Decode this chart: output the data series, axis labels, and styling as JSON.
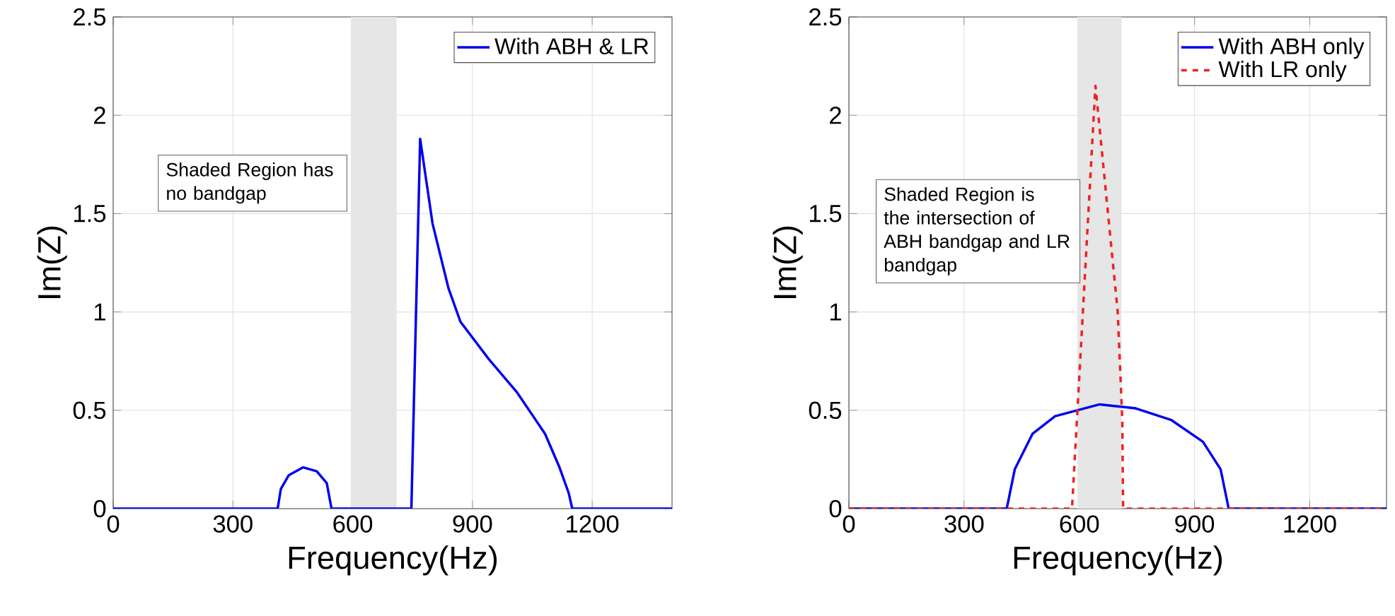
{
  "chart_data": [
    {
      "type": "line",
      "xlabel": "Frequency(Hz)",
      "ylabel": "Im(Z)",
      "xlim": [
        0,
        1400
      ],
      "ylim": [
        0,
        2.5
      ],
      "xticks": [
        0,
        300,
        600,
        900,
        1200
      ],
      "yticks": [
        0,
        0.5,
        1,
        1.5,
        2,
        2.5
      ],
      "grid": true,
      "legend": "top right",
      "bands": [
        {
          "axis": "x",
          "from": 595,
          "to": 710,
          "color": "#e6e6e6"
        }
      ],
      "annotations": [
        "Shaded Region has no bandgap"
      ],
      "series": [
        {
          "name": "With ABH & LR",
          "color": "#0000ee",
          "line_style": "solid",
          "x": [
            0,
            412,
            420,
            440,
            476,
            510,
            535,
            547,
            747,
            769,
            800,
            840,
            870,
            941,
            1012,
            1082,
            1118,
            1141,
            1150,
            1400
          ],
          "values": [
            0,
            0,
            0.1,
            0.17,
            0.21,
            0.19,
            0.13,
            0,
            0,
            1.88,
            1.45,
            1.12,
            0.95,
            0.76,
            0.59,
            0.38,
            0.21,
            0.08,
            0,
            0
          ]
        }
      ]
    },
    {
      "type": "line",
      "xlabel": "Frequency(Hz)",
      "ylabel": "Im(Z)",
      "xlim": [
        0,
        1400
      ],
      "ylim": [
        0,
        2.5
      ],
      "xticks": [
        0,
        300,
        600,
        900,
        1200
      ],
      "yticks": [
        0,
        0.5,
        1,
        1.5,
        2,
        2.5
      ],
      "grid": true,
      "legend": "top right",
      "bands": [
        {
          "axis": "x",
          "from": 595,
          "to": 710,
          "color": "#e6e6e6"
        }
      ],
      "annotations": [
        "Shaded Region is the intersection of ABH bandgap and LR bandgap"
      ],
      "series": [
        {
          "name": "With ABH only",
          "color": "#0000ee",
          "line_style": "solid",
          "x": [
            0,
            411,
            432,
            478,
            537,
            653,
            747,
            840,
            922,
            968,
            989,
            1400
          ],
          "values": [
            0,
            0,
            0.2,
            0.38,
            0.47,
            0.53,
            0.51,
            0.45,
            0.34,
            0.2,
            0,
            0
          ]
        },
        {
          "name": "With LR only",
          "color": "#ee2222",
          "line_style": "dashed",
          "x": [
            0,
            581,
            642,
            700,
            712,
            714,
            1400
          ],
          "values": [
            0,
            0,
            2.15,
            1.0,
            0.45,
            0,
            0
          ]
        }
      ]
    }
  ]
}
